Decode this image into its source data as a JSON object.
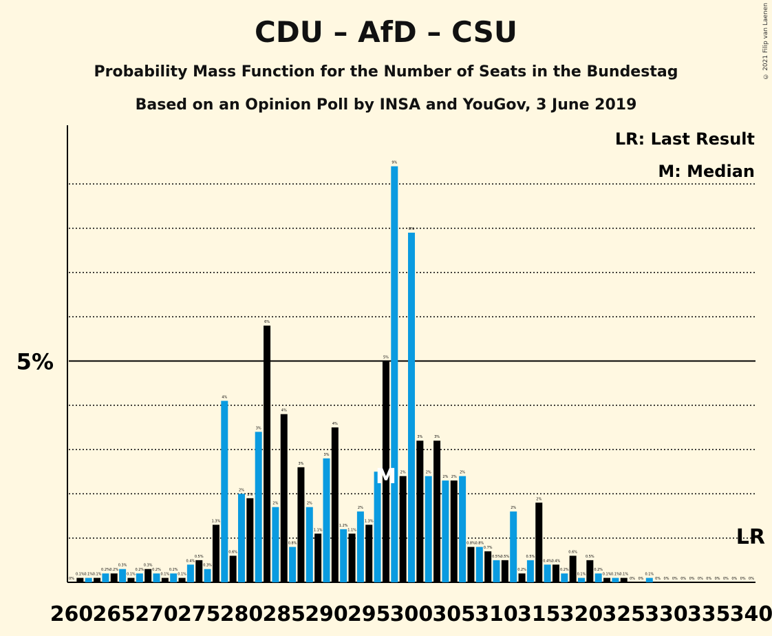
{
  "title": "CDU – AfD – CSU",
  "subtitle1": "Probability Mass Function for the Number of Seats in the Bundestag",
  "subtitle2": "Based on an Opinion Poll by INSA and YouGov, 3 June 2019",
  "copyright": "© 2021 Filip van Laenen",
  "legend": {
    "lr": "LR: Last Result",
    "m": "M: Median"
  },
  "markers": {
    "median_label": "M",
    "median_seat": 297,
    "lr_label": "LR"
  },
  "colors": {
    "background": "#FFF8E1",
    "bar_dark": "#000000",
    "bar_light": "#0A9BE0",
    "axis": "#000000"
  },
  "chart_data": {
    "type": "bar",
    "title": "CDU – AfD – CSU",
    "ylabel": "5%",
    "y_tick_value": 5,
    "ylim": [
      0,
      10.5
    ],
    "grid": "dotted every 1%",
    "x_tick_labels": [
      "260",
      "265",
      "270",
      "275",
      "280",
      "285",
      "290",
      "295",
      "300",
      "305",
      "310",
      "315",
      "320",
      "325",
      "330",
      "335",
      "340"
    ],
    "seats": [
      260,
      261,
      262,
      263,
      264,
      265,
      266,
      267,
      268,
      269,
      270,
      271,
      272,
      273,
      274,
      275,
      276,
      277,
      278,
      279,
      280,
      281,
      282,
      283,
      284,
      285,
      286,
      287,
      288,
      289,
      290,
      291,
      292,
      293,
      294,
      295,
      296,
      297,
      298,
      299,
      300,
      301,
      302,
      303,
      304,
      305,
      306,
      307,
      308,
      309,
      310,
      311,
      312,
      313,
      314,
      315,
      316,
      317,
      318,
      319,
      320,
      321,
      322,
      323,
      324,
      325,
      326,
      327,
      328,
      329,
      330,
      331,
      332,
      333,
      334,
      335,
      336,
      337,
      338,
      339,
      340
    ],
    "values": [
      0.0,
      0.1,
      0.1,
      0.1,
      0.2,
      0.2,
      0.3,
      0.1,
      0.2,
      0.3,
      0.2,
      0.1,
      0.2,
      0.1,
      0.4,
      0.5,
      0.3,
      1.3,
      4.1,
      0.6,
      2.0,
      1.9,
      3.4,
      5.8,
      1.7,
      3.8,
      0.8,
      2.6,
      1.7,
      1.1,
      2.8,
      3.5,
      1.2,
      1.1,
      1.6,
      1.3,
      2.5,
      5.0,
      9.4,
      2.4,
      7.9,
      3.2,
      2.4,
      3.2,
      2.3,
      2.3,
      2.4,
      0.8,
      0.8,
      0.7,
      0.5,
      0.5,
      1.6,
      0.2,
      0.5,
      1.8,
      0.4,
      0.4,
      0.2,
      0.6,
      0.1,
      0.5,
      0.2,
      0.1,
      0.1,
      0.1,
      0.0,
      0.0,
      0.1,
      0.0,
      0.0,
      0.0,
      0.0,
      0.0,
      0.0,
      0.0,
      0.0,
      0.0,
      0.0,
      0.0,
      0.0
    ],
    "labels": [
      "0%",
      "0.1%",
      "0.1%",
      "0.1%",
      "0.2%",
      "0.2%",
      "0.3%",
      "0.1%",
      "0.2%",
      "0.3%",
      "0.2%",
      "0.1%",
      "0.2%",
      "0.1%",
      "0.4%",
      "0.5%",
      "0.3%",
      "1.3%",
      "4%",
      "0.6%",
      "2%",
      "2%",
      "3%",
      "6%",
      "2%",
      "4%",
      "0.8%",
      "3%",
      "2%",
      "1.1%",
      "3%",
      "4%",
      "1.2%",
      "1.1%",
      "2%",
      "1.3%",
      "",
      "5%",
      "9%",
      "2%",
      "8%",
      "3%",
      "2%",
      "3%",
      "2%",
      "2%",
      "2%",
      "0.8%",
      "0.8%",
      "0.7%",
      "0.5%",
      "0.5%",
      "2%",
      "0.2%",
      "0.5%",
      "2%",
      "0.4%",
      "0.4%",
      "0.2%",
      "0.6%",
      "0.1%",
      "0.5%",
      "0.2%",
      "0.1%",
      "0.1%",
      "0.1%",
      "0%",
      "0%",
      "0.1%",
      "0%",
      "0%",
      "0%",
      "0%",
      "0%",
      "0%",
      "0%",
      "0%",
      "0%",
      "0%",
      "0%",
      "0%"
    ]
  }
}
